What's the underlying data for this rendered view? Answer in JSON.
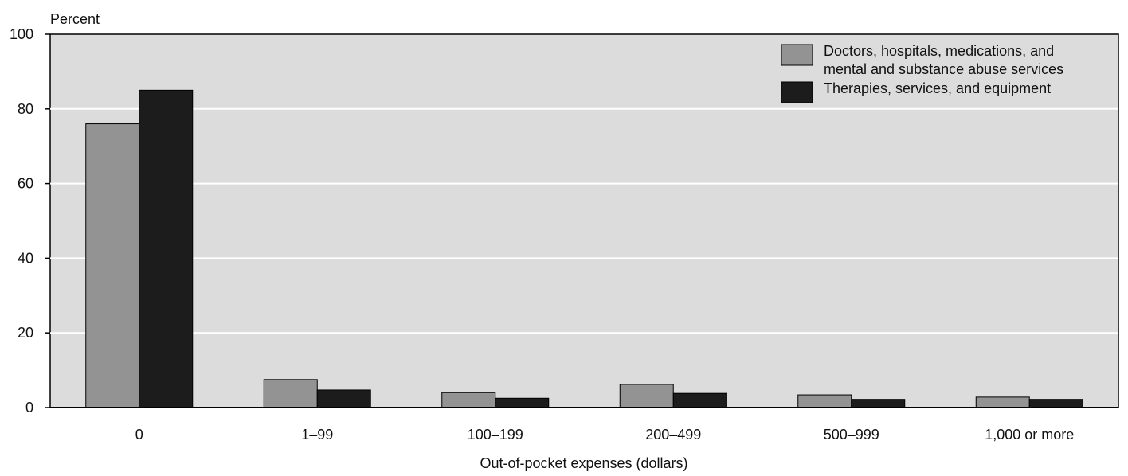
{
  "chart_data": {
    "type": "bar",
    "ylabel": "Percent",
    "xlabel": "Out-of-pocket expenses (dollars)",
    "categories": [
      "0",
      "1–99",
      "100–199",
      "200–499",
      "500–999",
      "1,000 or more"
    ],
    "series": [
      {
        "name": "Doctors, hospitals, medications, and mental and substance abuse services",
        "legend_lines": [
          "Doctors, hospitals, medications, and",
          "mental and substance abuse services"
        ],
        "values": [
          76,
          7.5,
          4,
          6.2,
          3.4,
          2.8
        ],
        "color": "#939393"
      },
      {
        "name": "Therapies, services, and equipment",
        "legend_lines": [
          "Therapies, services, and equipment"
        ],
        "values": [
          85,
          4.7,
          2.5,
          3.8,
          2.2,
          2.2
        ],
        "color": "#1c1c1c"
      }
    ],
    "ylim": [
      0,
      100
    ],
    "yticks": [
      0,
      20,
      40,
      60,
      80,
      100
    ],
    "grid": true,
    "legend_position": "top-right",
    "plot_background": "#dcdcdc"
  }
}
